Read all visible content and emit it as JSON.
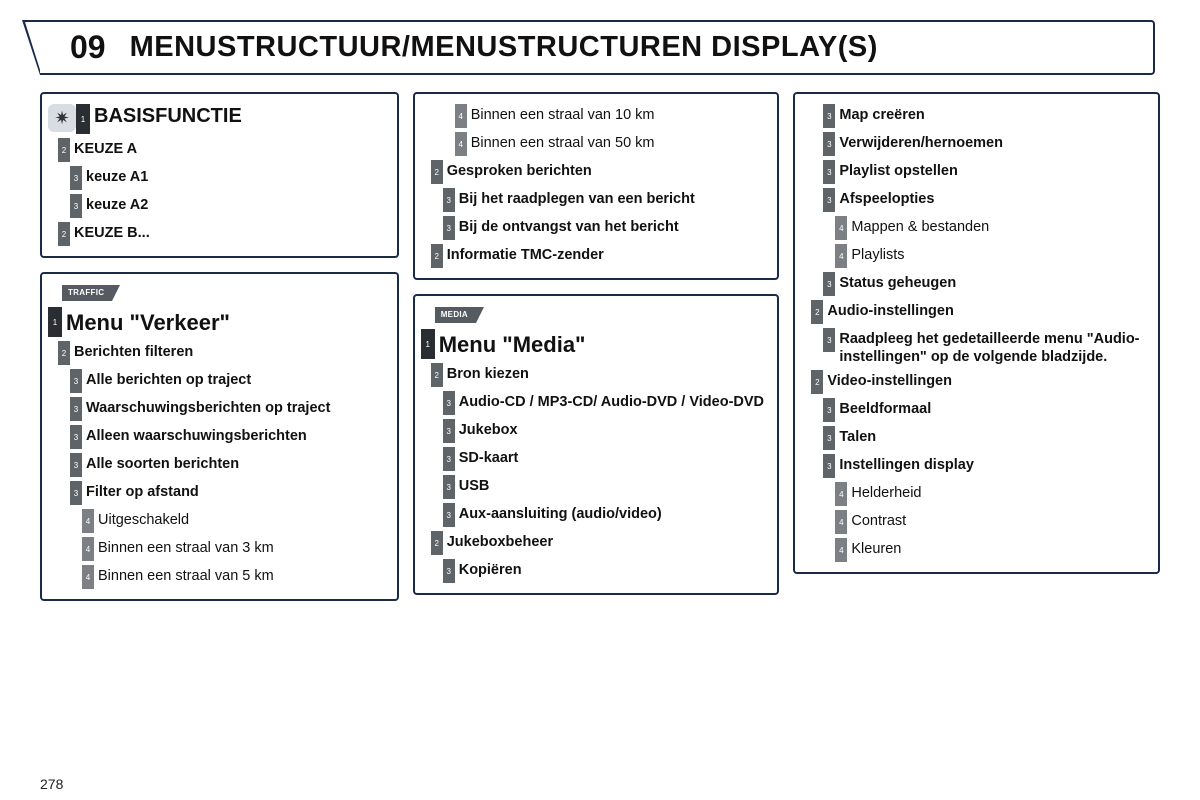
{
  "chapter": {
    "num": "09",
    "title": "MENUSTRUCTUUR/MENUSTRUCTUREN DISPLAY(S)"
  },
  "pageNumber": "278",
  "colors": {
    "border": "#1a2b4a",
    "levelDark": "#2a2d31",
    "levelMid": "#5e6468",
    "levelLight": "#7c8084",
    "iconBg": "#d8dde3"
  },
  "col1": {
    "panel1": {
      "iconGlyph": "✷",
      "title": "BASISFUNCTIE",
      "items": [
        {
          "level": 2,
          "label": "KEUZE A",
          "bold": true
        },
        {
          "level": 3,
          "label": "keuze A1",
          "bold": true
        },
        {
          "level": 3,
          "label": "keuze A2",
          "bold": true
        },
        {
          "level": 2,
          "label": "KEUZE B...",
          "bold": true
        }
      ],
      "titleLevel": 1
    },
    "panel2": {
      "chip": "TRAFFIC",
      "title": "Menu \"Verkeer\"",
      "items": [
        {
          "level": 2,
          "label": "Berichten filteren",
          "bold": true
        },
        {
          "level": 3,
          "label": "Alle berichten op traject",
          "bold": true
        },
        {
          "level": 3,
          "label": "Waarschuwingsberichten op traject",
          "bold": true
        },
        {
          "level": 3,
          "label": "Alleen waarschuwingsberichten",
          "bold": true
        },
        {
          "level": 3,
          "label": "Alle soorten berichten",
          "bold": true
        },
        {
          "level": 3,
          "label": "Filter op afstand",
          "bold": true
        },
        {
          "level": 4,
          "label": "Uitgeschakeld",
          "bold": false
        },
        {
          "level": 4,
          "label": "Binnen een straal van 3 km",
          "bold": false
        },
        {
          "level": 4,
          "label": "Binnen een straal van 5 km",
          "bold": false
        }
      ]
    }
  },
  "col2": {
    "panel1": {
      "items": [
        {
          "level": 4,
          "label": "Binnen een straal van 10 km",
          "bold": false
        },
        {
          "level": 4,
          "label": "Binnen een straal van 50 km",
          "bold": false
        },
        {
          "level": 2,
          "label": "Gesproken berichten",
          "bold": true
        },
        {
          "level": 3,
          "label": "Bij het raadplegen van een bericht",
          "bold": true
        },
        {
          "level": 3,
          "label": "Bij de ontvangst van het bericht",
          "bold": true
        },
        {
          "level": 2,
          "label": "Informatie TMC-zender",
          "bold": true
        }
      ]
    },
    "panel2": {
      "chip": "MEDIA",
      "title": "Menu \"Media\"",
      "items": [
        {
          "level": 2,
          "label": "Bron kiezen",
          "bold": true
        },
        {
          "level": 3,
          "label": "Audio-CD / MP3-CD/ Audio-DVD / Video-DVD",
          "bold": true
        },
        {
          "level": 3,
          "label": "Jukebox",
          "bold": true
        },
        {
          "level": 3,
          "label": "SD-kaart",
          "bold": true
        },
        {
          "level": 3,
          "label": "USB",
          "bold": true
        },
        {
          "level": 3,
          "label": "Aux-aansluiting (audio/video)",
          "bold": true
        },
        {
          "level": 2,
          "label": "Jukeboxbeheer",
          "bold": true
        },
        {
          "level": 3,
          "label": "Kopiëren",
          "bold": true
        }
      ]
    }
  },
  "col3": {
    "panel1": {
      "items": [
        {
          "level": 3,
          "label": "Map creëren",
          "bold": true
        },
        {
          "level": 3,
          "label": "Verwijderen/hernoemen",
          "bold": true
        },
        {
          "level": 3,
          "label": "Playlist opstellen",
          "bold": true
        },
        {
          "level": 3,
          "label": "Afspeelopties",
          "bold": true
        },
        {
          "level": 4,
          "label": "Mappen & bestanden",
          "bold": false
        },
        {
          "level": 4,
          "label": "Playlists",
          "bold": false
        },
        {
          "level": 3,
          "label": "Status geheugen",
          "bold": true
        },
        {
          "level": 2,
          "label": "Audio-instellingen",
          "bold": true
        },
        {
          "level": 3,
          "label": "Raadpleeg het gedetailleerde menu \"Audio-instellingen\" op de volgende bladzijde.",
          "bold": true
        },
        {
          "level": 2,
          "label": "Video-instellingen",
          "bold": true
        },
        {
          "level": 3,
          "label": "Beeldformaal",
          "bold": true
        },
        {
          "level": 3,
          "label": "Talen",
          "bold": true
        },
        {
          "level": 3,
          "label": "Instellingen display",
          "bold": true
        },
        {
          "level": 4,
          "label": "Helderheid",
          "bold": false
        },
        {
          "level": 4,
          "label": "Contrast",
          "bold": false
        },
        {
          "level": 4,
          "label": "Kleuren",
          "bold": false
        }
      ]
    }
  }
}
